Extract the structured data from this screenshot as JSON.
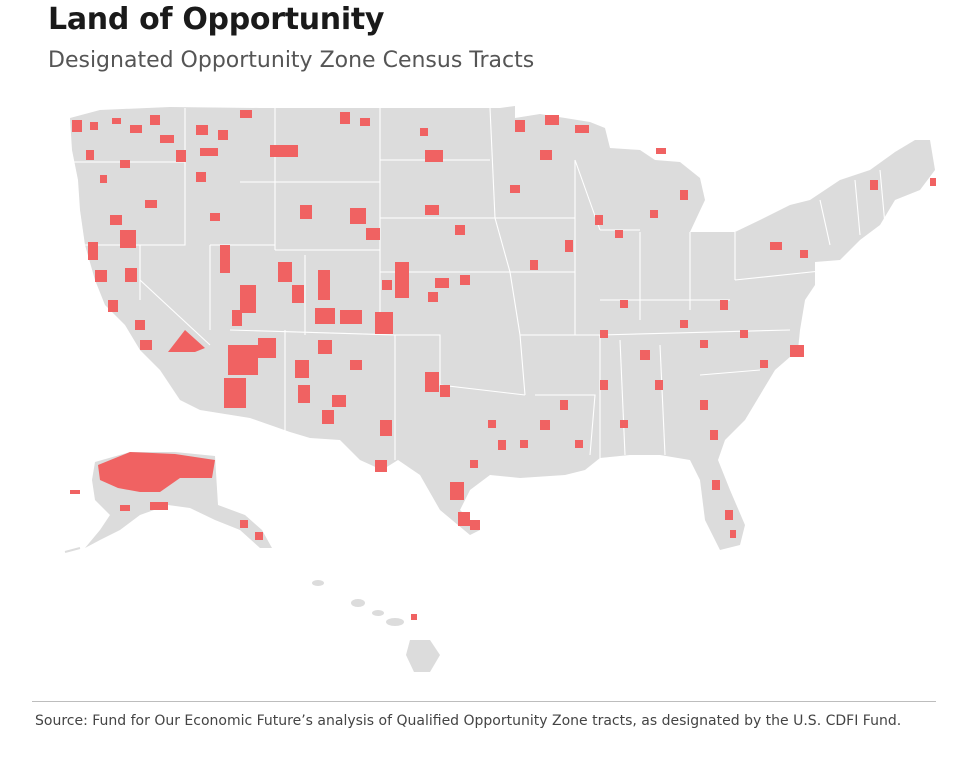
{
  "title": "Land of Opportunity",
  "subtitle": "Designated Opportunity Zone Census Tracts",
  "source": "Source: Fund for Our Economic Future’s analysis of Qualified Opportunity Zone tracts, as designated by the U.S. CDFI Fund.",
  "map": {
    "regions_shown": [
      "contiguous-united-states",
      "alaska",
      "hawaii"
    ],
    "colors": {
      "land": "#dcdcdc",
      "state_border": "#ffffff",
      "opportunity_zone_tract": "#f06262"
    }
  }
}
